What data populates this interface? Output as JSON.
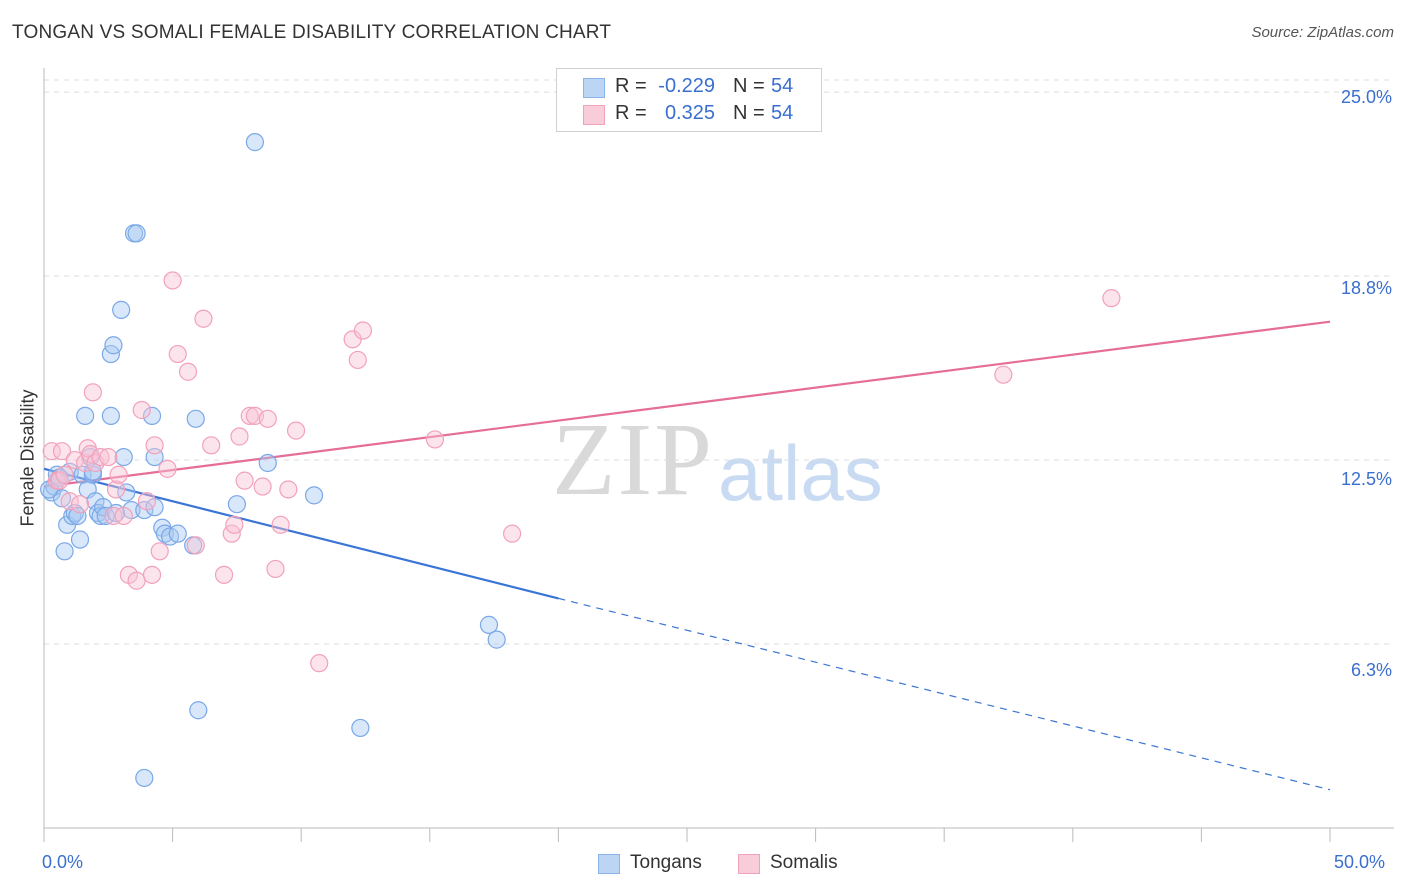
{
  "title": "TONGAN VS SOMALI FEMALE DISABILITY CORRELATION CHART",
  "source": "Source: ZipAtlas.com",
  "watermark": {
    "zip": "ZIP",
    "atlas": "atlas"
  },
  "legend_top": [
    {
      "r_label": "R =",
      "r_value": "-0.229",
      "n_label": "N =",
      "n_value": "54",
      "color": "#8ab4ec",
      "fill": "#bcd5f5"
    },
    {
      "r_label": "R =",
      "r_value": "0.325",
      "n_label": "N =",
      "n_value": "54",
      "color": "#f2a1bb",
      "fill": "#f9ccd9"
    }
  ],
  "legend_bottom": [
    {
      "label": "Tongans",
      "color": "#8ab4ec",
      "fill": "#bcd5f5"
    },
    {
      "label": "Somalis",
      "color": "#f2a1bb",
      "fill": "#f9ccd9"
    }
  ],
  "chart_data": {
    "type": "scatter",
    "title": "TONGAN VS SOMALI FEMALE DISABILITY CORRELATION CHART",
    "xlabel": "",
    "ylabel": "Female Disability",
    "xlim": [
      0,
      50
    ],
    "ylim": [
      0,
      25.75
    ],
    "x_tick_labels": {
      "left": "0.0%",
      "right": "50.0%"
    },
    "y_ticks": [
      {
        "value": 6.25,
        "label": "6.3%"
      },
      {
        "value": 12.5,
        "label": "12.5%"
      },
      {
        "value": 18.75,
        "label": "18.8%"
      },
      {
        "value": 25.0,
        "label": "25.0%"
      }
    ],
    "series": [
      {
        "name": "Tongans",
        "color": "#3a75d6",
        "point_stroke": "#7aa8e8",
        "point_fill": "rgba(168,201,241,0.45)",
        "trend": {
          "x1": 0,
          "y1": 12.2,
          "x2": 20,
          "y2": 7.8,
          "dash_to_x": 50,
          "dash_to_y": 1.3
        },
        "points": [
          [
            0.3,
            11.4
          ],
          [
            0.4,
            11.6
          ],
          [
            0.5,
            12.0
          ],
          [
            0.6,
            11.9
          ],
          [
            0.7,
            11.2
          ],
          [
            0.8,
            9.4
          ],
          [
            0.9,
            10.3
          ],
          [
            1.0,
            12.1
          ],
          [
            1.1,
            10.6
          ],
          [
            1.2,
            10.7
          ],
          [
            1.3,
            10.6
          ],
          [
            1.4,
            9.8
          ],
          [
            1.5,
            12.0
          ],
          [
            1.6,
            14.0
          ],
          [
            1.7,
            11.5
          ],
          [
            1.8,
            12.6
          ],
          [
            1.9,
            12.0
          ],
          [
            2.0,
            11.1
          ],
          [
            2.1,
            10.7
          ],
          [
            2.2,
            10.6
          ],
          [
            2.3,
            10.9
          ],
          [
            2.4,
            10.6
          ],
          [
            2.6,
            14.0
          ],
          [
            2.6,
            16.1
          ],
          [
            2.7,
            16.4
          ],
          [
            2.8,
            10.7
          ],
          [
            3.0,
            17.6
          ],
          [
            3.1,
            12.6
          ],
          [
            3.2,
            11.4
          ],
          [
            3.4,
            10.8
          ],
          [
            3.5,
            20.2
          ],
          [
            3.6,
            20.2
          ],
          [
            3.9,
            10.8
          ],
          [
            4.2,
            14.0
          ],
          [
            4.3,
            12.6
          ],
          [
            4.6,
            10.2
          ],
          [
            4.7,
            10.0
          ],
          [
            4.9,
            9.9
          ],
          [
            5.2,
            10.0
          ],
          [
            5.8,
            9.6
          ],
          [
            5.9,
            13.9
          ],
          [
            6.0,
            4.0
          ],
          [
            7.5,
            11.0
          ],
          [
            8.2,
            23.3
          ],
          [
            8.7,
            12.4
          ],
          [
            10.5,
            11.3
          ],
          [
            12.3,
            3.4
          ],
          [
            17.3,
            6.9
          ],
          [
            17.6,
            6.4
          ],
          [
            3.9,
            1.7
          ],
          [
            0.2,
            11.5
          ],
          [
            0.6,
            11.9
          ],
          [
            1.9,
            12.1
          ],
          [
            4.3,
            10.9
          ]
        ]
      },
      {
        "name": "Somalis",
        "color": "#e56d98",
        "point_stroke": "#f2a1bb",
        "point_fill": "rgba(248,196,212,0.45)",
        "trend": {
          "x1": 0,
          "y1": 11.6,
          "x2": 50,
          "y2": 17.2
        },
        "points": [
          [
            0.3,
            12.8
          ],
          [
            0.5,
            11.8
          ],
          [
            0.6,
            11.8
          ],
          [
            0.7,
            12.8
          ],
          [
            0.8,
            12.0
          ],
          [
            1.0,
            11.1
          ],
          [
            1.2,
            12.5
          ],
          [
            1.4,
            11.0
          ],
          [
            1.6,
            12.4
          ],
          [
            1.7,
            12.9
          ],
          [
            1.8,
            12.7
          ],
          [
            1.9,
            14.8
          ],
          [
            2.0,
            12.4
          ],
          [
            2.2,
            12.6
          ],
          [
            2.5,
            12.6
          ],
          [
            2.7,
            10.6
          ],
          [
            2.8,
            11.5
          ],
          [
            2.9,
            12.0
          ],
          [
            3.1,
            10.6
          ],
          [
            3.3,
            8.6
          ],
          [
            3.6,
            8.4
          ],
          [
            3.8,
            14.2
          ],
          [
            4.0,
            11.1
          ],
          [
            4.2,
            8.6
          ],
          [
            4.3,
            13.0
          ],
          [
            4.5,
            9.4
          ],
          [
            4.8,
            12.2
          ],
          [
            5.0,
            18.6
          ],
          [
            5.2,
            16.1
          ],
          [
            5.6,
            15.5
          ],
          [
            5.9,
            9.6
          ],
          [
            6.2,
            17.3
          ],
          [
            6.5,
            13.0
          ],
          [
            7.0,
            8.6
          ],
          [
            7.3,
            10.0
          ],
          [
            7.4,
            10.3
          ],
          [
            7.6,
            13.3
          ],
          [
            7.8,
            11.8
          ],
          [
            8.0,
            14.0
          ],
          [
            8.2,
            14.0
          ],
          [
            8.5,
            11.6
          ],
          [
            8.7,
            13.9
          ],
          [
            9.0,
            8.8
          ],
          [
            9.2,
            10.3
          ],
          [
            9.5,
            11.5
          ],
          [
            9.8,
            13.5
          ],
          [
            10.7,
            5.6
          ],
          [
            12.0,
            16.6
          ],
          [
            12.2,
            15.9
          ],
          [
            12.4,
            16.9
          ],
          [
            15.2,
            13.2
          ],
          [
            18.2,
            10.0
          ],
          [
            37.3,
            15.4
          ],
          [
            41.5,
            18.0
          ]
        ]
      }
    ],
    "grid": true
  }
}
